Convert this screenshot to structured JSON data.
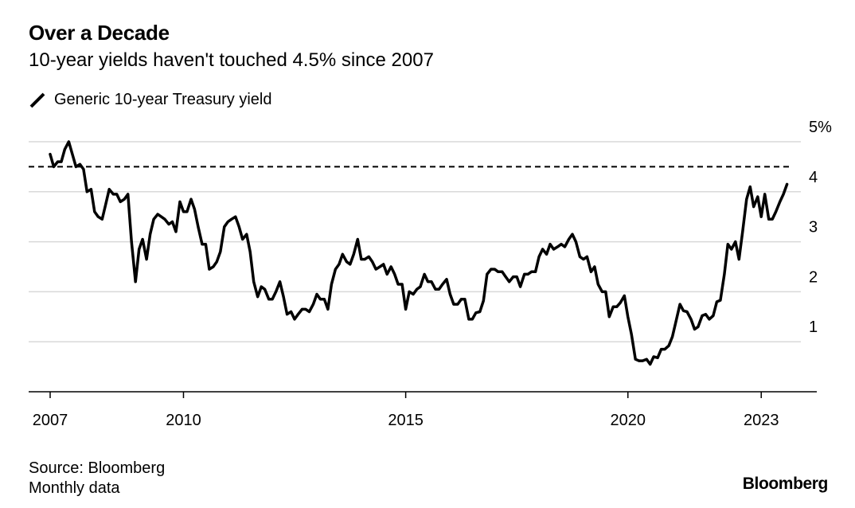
{
  "header": {
    "title": "Over a Decade",
    "subtitle": "10-year yields haven't touched 4.5% since 2007"
  },
  "legend": {
    "label": "Generic 10-year Treasury yield",
    "icon": "diagonal-line-icon"
  },
  "footer": {
    "source": "Source: Bloomberg",
    "note": "Monthly data",
    "brand": "Bloomberg"
  },
  "colors": {
    "line": "#000000",
    "grid": "#d9d9d9",
    "axis": "#000000"
  },
  "chart_data": {
    "type": "line",
    "title": "Over a Decade",
    "subtitle": "10-year yields haven't touched 4.5% since 2007",
    "xlabel": "",
    "ylabel": "",
    "xlim": [
      2007.0,
      2024.25
    ],
    "ylim": [
      0,
      5
    ],
    "x_ticks": [
      {
        "value": 2007,
        "label": "2007"
      },
      {
        "value": 2010,
        "label": "2010"
      },
      {
        "value": 2015,
        "label": "2015"
      },
      {
        "value": 2020,
        "label": "2020"
      },
      {
        "value": 2023,
        "label": "2023"
      }
    ],
    "y_ticks": [
      {
        "value": 1,
        "label": "1"
      },
      {
        "value": 2,
        "label": "2"
      },
      {
        "value": 3,
        "label": "3"
      },
      {
        "value": 4,
        "label": "4"
      },
      {
        "value": 5,
        "label": "5%"
      }
    ],
    "grid": true,
    "legend_position": "top-left",
    "reference_line": {
      "value": 4.5,
      "style": "dashed"
    },
    "series": [
      {
        "name": "Generic 10-year Treasury yield",
        "points": [
          [
            2007.0,
            4.75
          ],
          [
            2007.08,
            4.5
          ],
          [
            2007.17,
            4.6
          ],
          [
            2007.25,
            4.6
          ],
          [
            2007.33,
            4.85
          ],
          [
            2007.42,
            5.0
          ],
          [
            2007.5,
            4.75
          ],
          [
            2007.58,
            4.5
          ],
          [
            2007.67,
            4.55
          ],
          [
            2007.75,
            4.45
          ],
          [
            2007.83,
            4.0
          ],
          [
            2007.92,
            4.05
          ],
          [
            2008.0,
            3.6
          ],
          [
            2008.08,
            3.5
          ],
          [
            2008.17,
            3.45
          ],
          [
            2008.25,
            3.75
          ],
          [
            2008.33,
            4.05
          ],
          [
            2008.42,
            3.95
          ],
          [
            2008.5,
            3.95
          ],
          [
            2008.58,
            3.8
          ],
          [
            2008.67,
            3.85
          ],
          [
            2008.75,
            3.95
          ],
          [
            2008.83,
            3.0
          ],
          [
            2008.92,
            2.2
          ],
          [
            2009.0,
            2.85
          ],
          [
            2009.08,
            3.05
          ],
          [
            2009.17,
            2.65
          ],
          [
            2009.25,
            3.15
          ],
          [
            2009.33,
            3.45
          ],
          [
            2009.42,
            3.55
          ],
          [
            2009.5,
            3.5
          ],
          [
            2009.58,
            3.45
          ],
          [
            2009.67,
            3.35
          ],
          [
            2009.75,
            3.4
          ],
          [
            2009.83,
            3.2
          ],
          [
            2009.92,
            3.8
          ],
          [
            2010.0,
            3.6
          ],
          [
            2010.08,
            3.6
          ],
          [
            2010.17,
            3.85
          ],
          [
            2010.25,
            3.65
          ],
          [
            2010.33,
            3.3
          ],
          [
            2010.42,
            2.95
          ],
          [
            2010.5,
            2.95
          ],
          [
            2010.58,
            2.45
          ],
          [
            2010.67,
            2.5
          ],
          [
            2010.75,
            2.6
          ],
          [
            2010.83,
            2.8
          ],
          [
            2010.92,
            3.3
          ],
          [
            2011.0,
            3.4
          ],
          [
            2011.08,
            3.45
          ],
          [
            2011.17,
            3.5
          ],
          [
            2011.25,
            3.3
          ],
          [
            2011.33,
            3.05
          ],
          [
            2011.42,
            3.15
          ],
          [
            2011.5,
            2.8
          ],
          [
            2011.58,
            2.2
          ],
          [
            2011.67,
            1.9
          ],
          [
            2011.75,
            2.1
          ],
          [
            2011.83,
            2.05
          ],
          [
            2011.92,
            1.85
          ],
          [
            2012.0,
            1.85
          ],
          [
            2012.08,
            2.0
          ],
          [
            2012.17,
            2.2
          ],
          [
            2012.25,
            1.9
          ],
          [
            2012.33,
            1.55
          ],
          [
            2012.42,
            1.6
          ],
          [
            2012.5,
            1.45
          ],
          [
            2012.58,
            1.55
          ],
          [
            2012.67,
            1.65
          ],
          [
            2012.75,
            1.65
          ],
          [
            2012.83,
            1.6
          ],
          [
            2012.92,
            1.75
          ],
          [
            2013.0,
            1.95
          ],
          [
            2013.08,
            1.85
          ],
          [
            2013.17,
            1.85
          ],
          [
            2013.25,
            1.65
          ],
          [
            2013.33,
            2.15
          ],
          [
            2013.42,
            2.45
          ],
          [
            2013.5,
            2.55
          ],
          [
            2013.58,
            2.75
          ],
          [
            2013.67,
            2.6
          ],
          [
            2013.75,
            2.55
          ],
          [
            2013.83,
            2.75
          ],
          [
            2013.92,
            3.05
          ],
          [
            2014.0,
            2.65
          ],
          [
            2014.08,
            2.65
          ],
          [
            2014.17,
            2.7
          ],
          [
            2014.25,
            2.6
          ],
          [
            2014.33,
            2.45
          ],
          [
            2014.42,
            2.5
          ],
          [
            2014.5,
            2.55
          ],
          [
            2014.58,
            2.35
          ],
          [
            2014.67,
            2.5
          ],
          [
            2014.75,
            2.35
          ],
          [
            2014.83,
            2.15
          ],
          [
            2014.92,
            2.15
          ],
          [
            2015.0,
            1.65
          ],
          [
            2015.08,
            2.0
          ],
          [
            2015.17,
            1.95
          ],
          [
            2015.25,
            2.05
          ],
          [
            2015.33,
            2.1
          ],
          [
            2015.42,
            2.35
          ],
          [
            2015.5,
            2.2
          ],
          [
            2015.58,
            2.2
          ],
          [
            2015.67,
            2.05
          ],
          [
            2015.75,
            2.05
          ],
          [
            2015.83,
            2.15
          ],
          [
            2015.92,
            2.25
          ],
          [
            2016.0,
            1.95
          ],
          [
            2016.08,
            1.75
          ],
          [
            2016.17,
            1.75
          ],
          [
            2016.25,
            1.85
          ],
          [
            2016.33,
            1.85
          ],
          [
            2016.42,
            1.45
          ],
          [
            2016.5,
            1.45
          ],
          [
            2016.58,
            1.58
          ],
          [
            2016.67,
            1.6
          ],
          [
            2016.75,
            1.82
          ],
          [
            2016.83,
            2.35
          ],
          [
            2016.92,
            2.45
          ],
          [
            2017.0,
            2.45
          ],
          [
            2017.08,
            2.4
          ],
          [
            2017.17,
            2.4
          ],
          [
            2017.25,
            2.3
          ],
          [
            2017.33,
            2.2
          ],
          [
            2017.42,
            2.3
          ],
          [
            2017.5,
            2.3
          ],
          [
            2017.58,
            2.1
          ],
          [
            2017.67,
            2.35
          ],
          [
            2017.75,
            2.35
          ],
          [
            2017.83,
            2.4
          ],
          [
            2017.92,
            2.4
          ],
          [
            2018.0,
            2.7
          ],
          [
            2018.08,
            2.85
          ],
          [
            2018.17,
            2.75
          ],
          [
            2018.25,
            2.95
          ],
          [
            2018.33,
            2.85
          ],
          [
            2018.42,
            2.9
          ],
          [
            2018.5,
            2.95
          ],
          [
            2018.58,
            2.9
          ],
          [
            2018.67,
            3.05
          ],
          [
            2018.75,
            3.15
          ],
          [
            2018.83,
            3.0
          ],
          [
            2018.92,
            2.7
          ],
          [
            2019.0,
            2.65
          ],
          [
            2019.08,
            2.7
          ],
          [
            2019.17,
            2.4
          ],
          [
            2019.25,
            2.5
          ],
          [
            2019.33,
            2.15
          ],
          [
            2019.42,
            2.0
          ],
          [
            2019.5,
            2.0
          ],
          [
            2019.58,
            1.5
          ],
          [
            2019.67,
            1.7
          ],
          [
            2019.75,
            1.7
          ],
          [
            2019.83,
            1.78
          ],
          [
            2019.92,
            1.92
          ],
          [
            2020.0,
            1.5
          ],
          [
            2020.08,
            1.15
          ],
          [
            2020.17,
            0.65
          ],
          [
            2020.25,
            0.62
          ],
          [
            2020.33,
            0.62
          ],
          [
            2020.42,
            0.65
          ],
          [
            2020.5,
            0.55
          ],
          [
            2020.58,
            0.7
          ],
          [
            2020.67,
            0.68
          ],
          [
            2020.75,
            0.85
          ],
          [
            2020.83,
            0.85
          ],
          [
            2020.92,
            0.92
          ],
          [
            2021.0,
            1.1
          ],
          [
            2021.08,
            1.4
          ],
          [
            2021.17,
            1.75
          ],
          [
            2021.25,
            1.62
          ],
          [
            2021.33,
            1.6
          ],
          [
            2021.42,
            1.45
          ],
          [
            2021.5,
            1.25
          ],
          [
            2021.58,
            1.3
          ],
          [
            2021.67,
            1.52
          ],
          [
            2021.75,
            1.55
          ],
          [
            2021.83,
            1.45
          ],
          [
            2021.92,
            1.52
          ],
          [
            2022.0,
            1.8
          ],
          [
            2022.08,
            1.83
          ],
          [
            2022.17,
            2.35
          ],
          [
            2022.25,
            2.95
          ],
          [
            2022.33,
            2.85
          ],
          [
            2022.42,
            3.0
          ],
          [
            2022.5,
            2.65
          ],
          [
            2022.58,
            3.2
          ],
          [
            2022.67,
            3.85
          ],
          [
            2022.75,
            4.1
          ],
          [
            2022.83,
            3.7
          ],
          [
            2022.92,
            3.9
          ],
          [
            2023.0,
            3.5
          ],
          [
            2023.08,
            3.95
          ],
          [
            2023.17,
            3.45
          ],
          [
            2023.25,
            3.45
          ],
          [
            2023.33,
            3.6
          ],
          [
            2023.42,
            3.8
          ],
          [
            2023.5,
            3.95
          ],
          [
            2023.58,
            4.15
          ]
        ]
      }
    ]
  }
}
